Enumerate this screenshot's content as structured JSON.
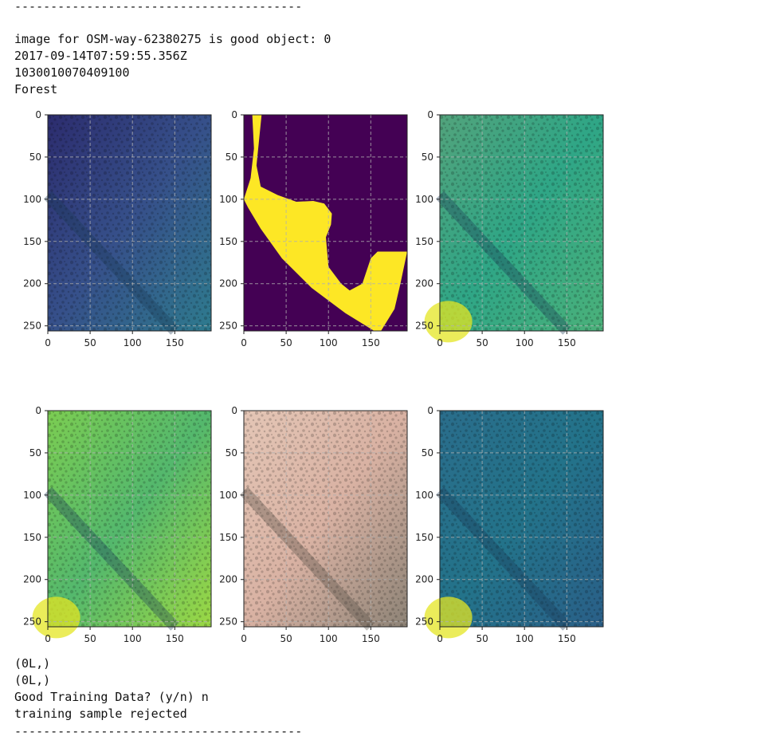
{
  "notebook": {
    "separator_top": "----------------------------------------",
    "lines_top": [
      "image for OSM-way-62380275 is good object: 0",
      "2017-09-14T07:59:55.356Z",
      "1030010070409100",
      "Forest"
    ],
    "lines_bottom": [
      "(0L,)",
      "(0L,)",
      "Good Training Data? (y/n) n",
      "training sample rejected"
    ],
    "separator_bottom": "----------------------------------------"
  },
  "figure": {
    "x_ticks": [
      "0",
      "50",
      "100",
      "150"
    ],
    "y_ticks": [
      "0",
      "50",
      "100",
      "150",
      "200",
      "250"
    ],
    "x_tick_values": [
      0,
      50,
      100,
      150
    ],
    "y_tick_values": [
      0,
      50,
      100,
      150,
      200,
      250
    ],
    "x_range": [
      0,
      193
    ],
    "y_range": [
      0,
      256
    ],
    "panels": [
      {
        "name": "panel-blue-channel",
        "style": "dark-viridis"
      },
      {
        "name": "panel-mask",
        "style": "mask"
      },
      {
        "name": "panel-green-channel",
        "style": "mid-viridis"
      },
      {
        "name": "panel-bright-channel",
        "style": "bright-viridis"
      },
      {
        "name": "panel-rgb",
        "style": "rgb"
      },
      {
        "name": "panel-teal-channel",
        "style": "teal-viridis"
      }
    ],
    "colors": {
      "mask_background": "#440154",
      "mask_fill": "#fde725"
    }
  }
}
